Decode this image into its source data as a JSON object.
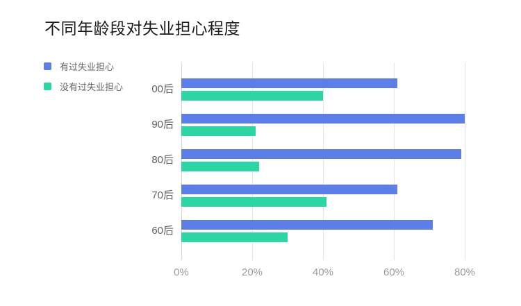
{
  "page": {
    "background": "#ffffff"
  },
  "title": "不同年龄段对失业担心程度",
  "legend": {
    "position": "top-left",
    "items": [
      {
        "label": "有过失业担心",
        "color": "#5b7ee8"
      },
      {
        "label": "没有过失业担心",
        "color": "#2bd6a4"
      }
    ]
  },
  "chart_data": {
    "type": "bar",
    "orientation": "horizontal",
    "title": "不同年龄段对失业担心程度",
    "categories": [
      "00后",
      "90后",
      "80后",
      "70后",
      "60后"
    ],
    "series": [
      {
        "name": "有过失业担心",
        "color": "#5b7ee8",
        "values": [
          61,
          80,
          79,
          61,
          71
        ]
      },
      {
        "name": "没有过失业担心",
        "color": "#2bd6a4",
        "values": [
          40,
          21,
          22,
          41,
          30
        ]
      }
    ],
    "unit": "%",
    "x_axis": {
      "ticks": [
        "0%",
        "20%",
        "40%",
        "60%",
        "80%"
      ],
      "tick_values": [
        0,
        20,
        40,
        60,
        80
      ],
      "min": 0,
      "max": 90
    },
    "grid": true,
    "gridline_color": "#e4e4e4",
    "axis_line_color": "#d6d6d6",
    "category_label_color": "#606060",
    "tick_label_color": "#9a9a9a",
    "legend_position": "top-left"
  }
}
